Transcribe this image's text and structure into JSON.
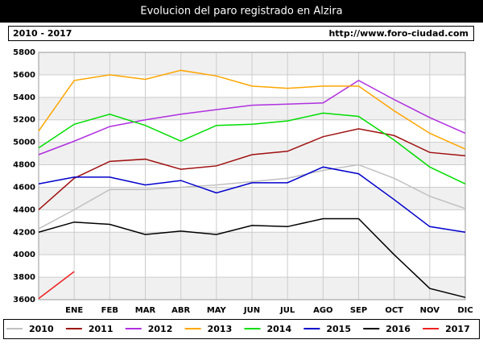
{
  "chart_data": {
    "type": "line",
    "title": "Evolucion del paro registrado en Alzira",
    "period": "2010 - 2017",
    "source": "http://www.foro-ciudad.com",
    "categories": [
      null,
      "ENE",
      "FEB",
      "MAR",
      "ABR",
      "MAY",
      "JUN",
      "JUL",
      "AGO",
      "SEP",
      "OCT",
      "NOV",
      "DIC"
    ],
    "ylim": [
      3600,
      5800
    ],
    "yticks": [
      3600,
      3800,
      4000,
      4200,
      4400,
      4600,
      4800,
      5000,
      5200,
      5400,
      5600,
      5800
    ],
    "grid": true,
    "legend": "bottom",
    "series": [
      {
        "name": "2010",
        "color": "#c0c0c0",
        "values": [
          4230,
          4400,
          4580,
          4580,
          4600,
          4620,
          4650,
          4680,
          4750,
          4800,
          4680,
          4520,
          4410
        ]
      },
      {
        "name": "2011",
        "color": "#a01010",
        "values": [
          4400,
          4680,
          4830,
          4850,
          4760,
          4790,
          4890,
          4920,
          5050,
          5120,
          5060,
          4910,
          4880
        ]
      },
      {
        "name": "2012",
        "color": "#b030e0",
        "values": [
          4890,
          5010,
          5140,
          5200,
          5250,
          5290,
          5330,
          5340,
          5350,
          5550,
          5380,
          5220,
          5080
        ]
      },
      {
        "name": "2013",
        "color": "#ffa500",
        "values": [
          5100,
          5550,
          5600,
          5560,
          5640,
          5590,
          5500,
          5480,
          5500,
          5500,
          5280,
          5080,
          4940
        ]
      },
      {
        "name": "2014",
        "color": "#00dd00",
        "values": [
          4950,
          5160,
          5250,
          5150,
          5010,
          5150,
          5160,
          5190,
          5260,
          5230,
          5020,
          4780,
          4630
        ]
      },
      {
        "name": "2015",
        "color": "#0000cc",
        "values": [
          4630,
          4690,
          4690,
          4620,
          4660,
          4550,
          4640,
          4640,
          4780,
          4720,
          4490,
          4250,
          4200
        ]
      },
      {
        "name": "2016",
        "color": "#000000",
        "values": [
          4200,
          4290,
          4270,
          4180,
          4210,
          4180,
          4260,
          4250,
          4320,
          4320,
          4000,
          3700,
          3620
        ]
      },
      {
        "name": "2017",
        "color": "#ee2020",
        "values": [
          3610,
          3850,
          null,
          null,
          null,
          null,
          null,
          null,
          null,
          null,
          null,
          null,
          null
        ]
      }
    ]
  }
}
